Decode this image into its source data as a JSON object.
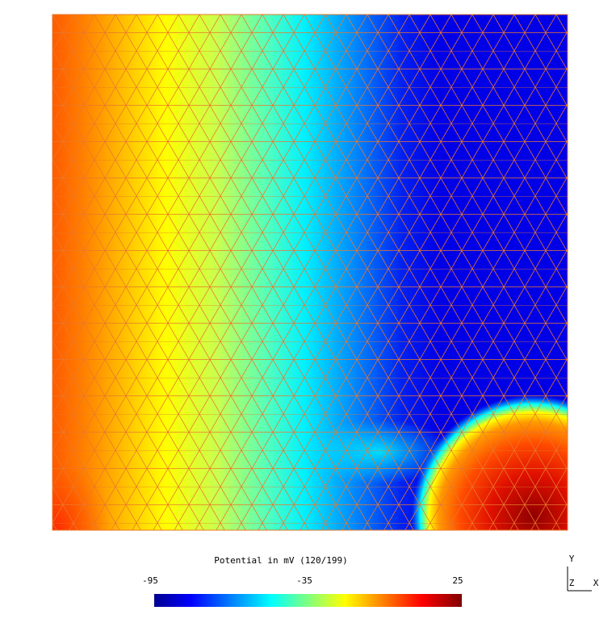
{
  "colorbar": {
    "title": "Potential in mV (120/199)",
    "min_label": "-95",
    "mid_label": "-35",
    "max_label": "25"
  },
  "axes": {
    "y": "Y",
    "z": "Z",
    "x": "X"
  }
}
